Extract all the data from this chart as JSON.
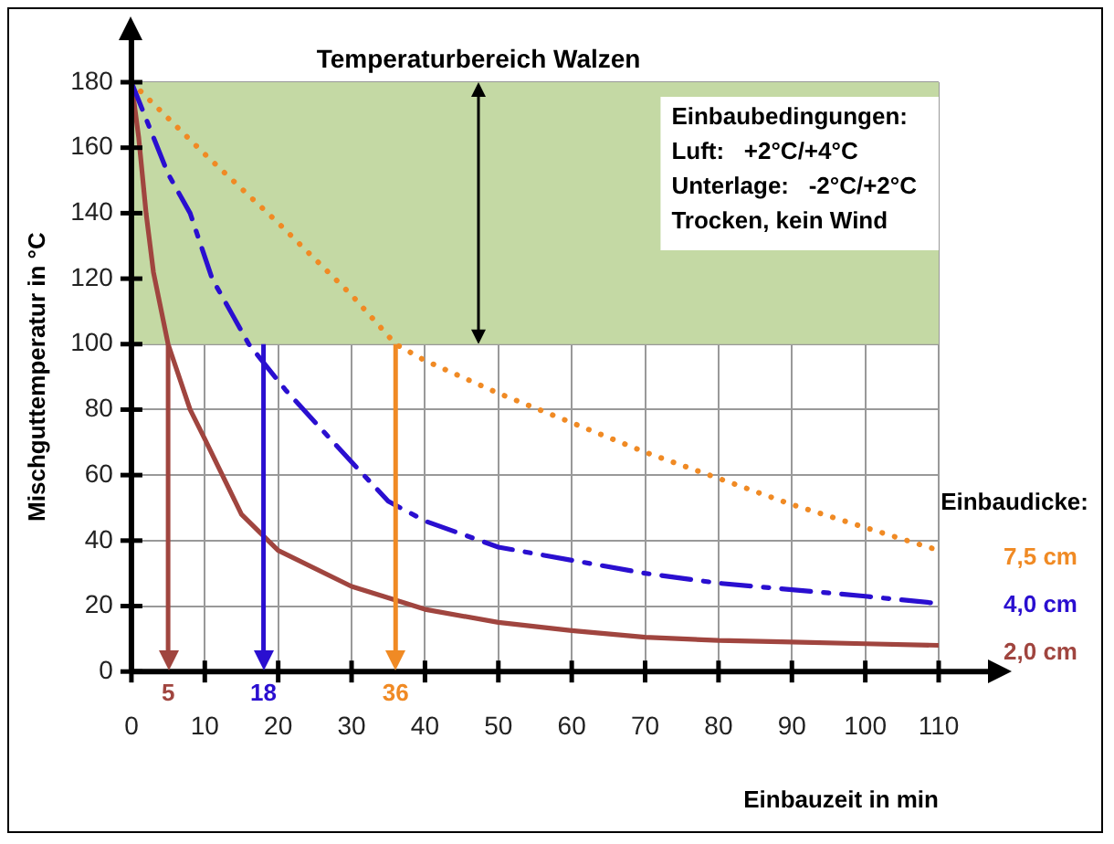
{
  "chart_data": {
    "type": "line",
    "xlabel": "Einbauzeit in min",
    "ylabel": "Mischguttemperatur in °C",
    "legend_title": "Einbaudicke:",
    "xlim": [
      0,
      110
    ],
    "xticks": [
      0,
      10,
      20,
      30,
      40,
      50,
      60,
      70,
      80,
      90,
      100,
      110
    ],
    "ylim": [
      0,
      180
    ],
    "yticks": [
      0,
      20,
      40,
      60,
      80,
      100,
      120,
      140,
      160,
      180
    ],
    "grid": true,
    "legend": "right",
    "marker": "none",
    "series": [
      {
        "name": "7,5 cm",
        "color": "#f08a24",
        "line_style": "dotted",
        "x": [
          0,
          10,
          20,
          30,
          36,
          40,
          50,
          60,
          70,
          80,
          90,
          100,
          110
        ],
        "values": [
          180,
          158,
          137,
          115,
          100,
          95,
          85,
          76,
          67,
          59,
          51,
          44,
          37
        ]
      },
      {
        "name": "4,0 cm",
        "color": "#2a0fd0",
        "line_style": "dashed",
        "x": [
          0,
          5,
          8,
          11,
          16,
          21,
          30,
          35,
          40,
          50,
          60,
          70,
          80,
          90,
          100,
          109
        ],
        "values": [
          180,
          152,
          140,
          120,
          100,
          86,
          64,
          52,
          46,
          38,
          34,
          30,
          27,
          25,
          23,
          21
        ]
      },
      {
        "name": "2,0 cm",
        "color": "#a0453f",
        "line_style": "solid",
        "x": [
          0,
          1,
          2,
          3,
          5,
          8,
          10,
          15,
          20,
          30,
          40,
          50,
          60,
          70,
          80,
          90,
          100,
          110
        ],
        "values": [
          180,
          163,
          140,
          122,
          100,
          80,
          71,
          48,
          37,
          26,
          19,
          15,
          12.5,
          10.5,
          9.5,
          9,
          8.5,
          8
        ]
      }
    ],
    "bands": [
      {
        "axis": "y",
        "from": 100,
        "to": 180,
        "label": "Temperaturbereich Walzen",
        "color": "#c4d9a4"
      }
    ],
    "ref_lines": [
      {
        "axis": "x",
        "value": 5,
        "label": "5",
        "color": "#a0453f"
      },
      {
        "axis": "x",
        "value": 18,
        "label": "18",
        "color": "#2a0fd0"
      },
      {
        "axis": "x",
        "value": 36,
        "label": "36",
        "color": "#f08a24"
      }
    ],
    "annotations": [
      "Einbaubedingungen:",
      "Luft:   +2°C/+4°C",
      "Unterlage:   -2°C/+2°C",
      "Trocken, kein Wind"
    ]
  }
}
